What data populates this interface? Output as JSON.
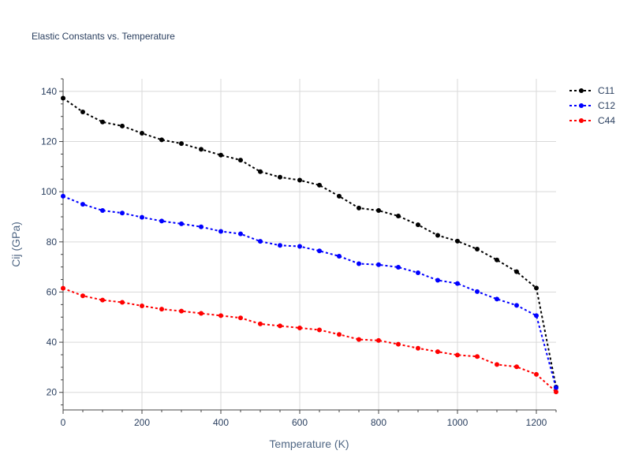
{
  "chart_data": {
    "type": "line",
    "title": "Elastic Constants vs. Temperature",
    "xlabel": "Temperature (K)",
    "ylabel": "Cij (GPa)",
    "xlim": [
      0,
      1250
    ],
    "ylim": [
      13,
      145
    ],
    "x_ticks": [
      0,
      200,
      400,
      600,
      800,
      1000,
      1200
    ],
    "y_ticks": [
      20,
      40,
      60,
      80,
      100,
      120,
      140
    ],
    "grid": true,
    "legend_position": "top-right",
    "x": [
      0,
      50,
      100,
      150,
      200,
      250,
      300,
      350,
      400,
      450,
      500,
      550,
      600,
      650,
      700,
      750,
      800,
      850,
      900,
      950,
      1000,
      1050,
      1100,
      1150,
      1200,
      1250
    ],
    "series": [
      {
        "name": "C11",
        "color": "#000000",
        "values": [
          137.3,
          131.8,
          127.8,
          126.2,
          123.3,
          120.7,
          119.2,
          116.9,
          114.6,
          112.6,
          108.0,
          105.8,
          104.6,
          102.6,
          98.2,
          93.5,
          92.5,
          90.3,
          86.8,
          82.6,
          80.3,
          77.1,
          72.8,
          68.1,
          61.6,
          22.1
        ]
      },
      {
        "name": "C12",
        "color": "#0000ff",
        "values": [
          98.2,
          95.0,
          92.5,
          91.5,
          89.8,
          88.3,
          87.2,
          86.0,
          84.2,
          83.2,
          80.2,
          78.6,
          78.2,
          76.4,
          74.3,
          71.3,
          70.9,
          69.9,
          67.7,
          64.7,
          63.4,
          60.2,
          57.2,
          54.7,
          50.6,
          21.8
        ]
      },
      {
        "name": "C44",
        "color": "#ff0000",
        "values": [
          61.5,
          58.5,
          56.8,
          55.9,
          54.5,
          53.2,
          52.4,
          51.5,
          50.6,
          49.7,
          47.3,
          46.5,
          45.7,
          44.9,
          43.1,
          41.1,
          40.7,
          39.2,
          37.6,
          36.2,
          34.9,
          34.3,
          31.1,
          30.2,
          27.2,
          20.2
        ]
      }
    ]
  }
}
